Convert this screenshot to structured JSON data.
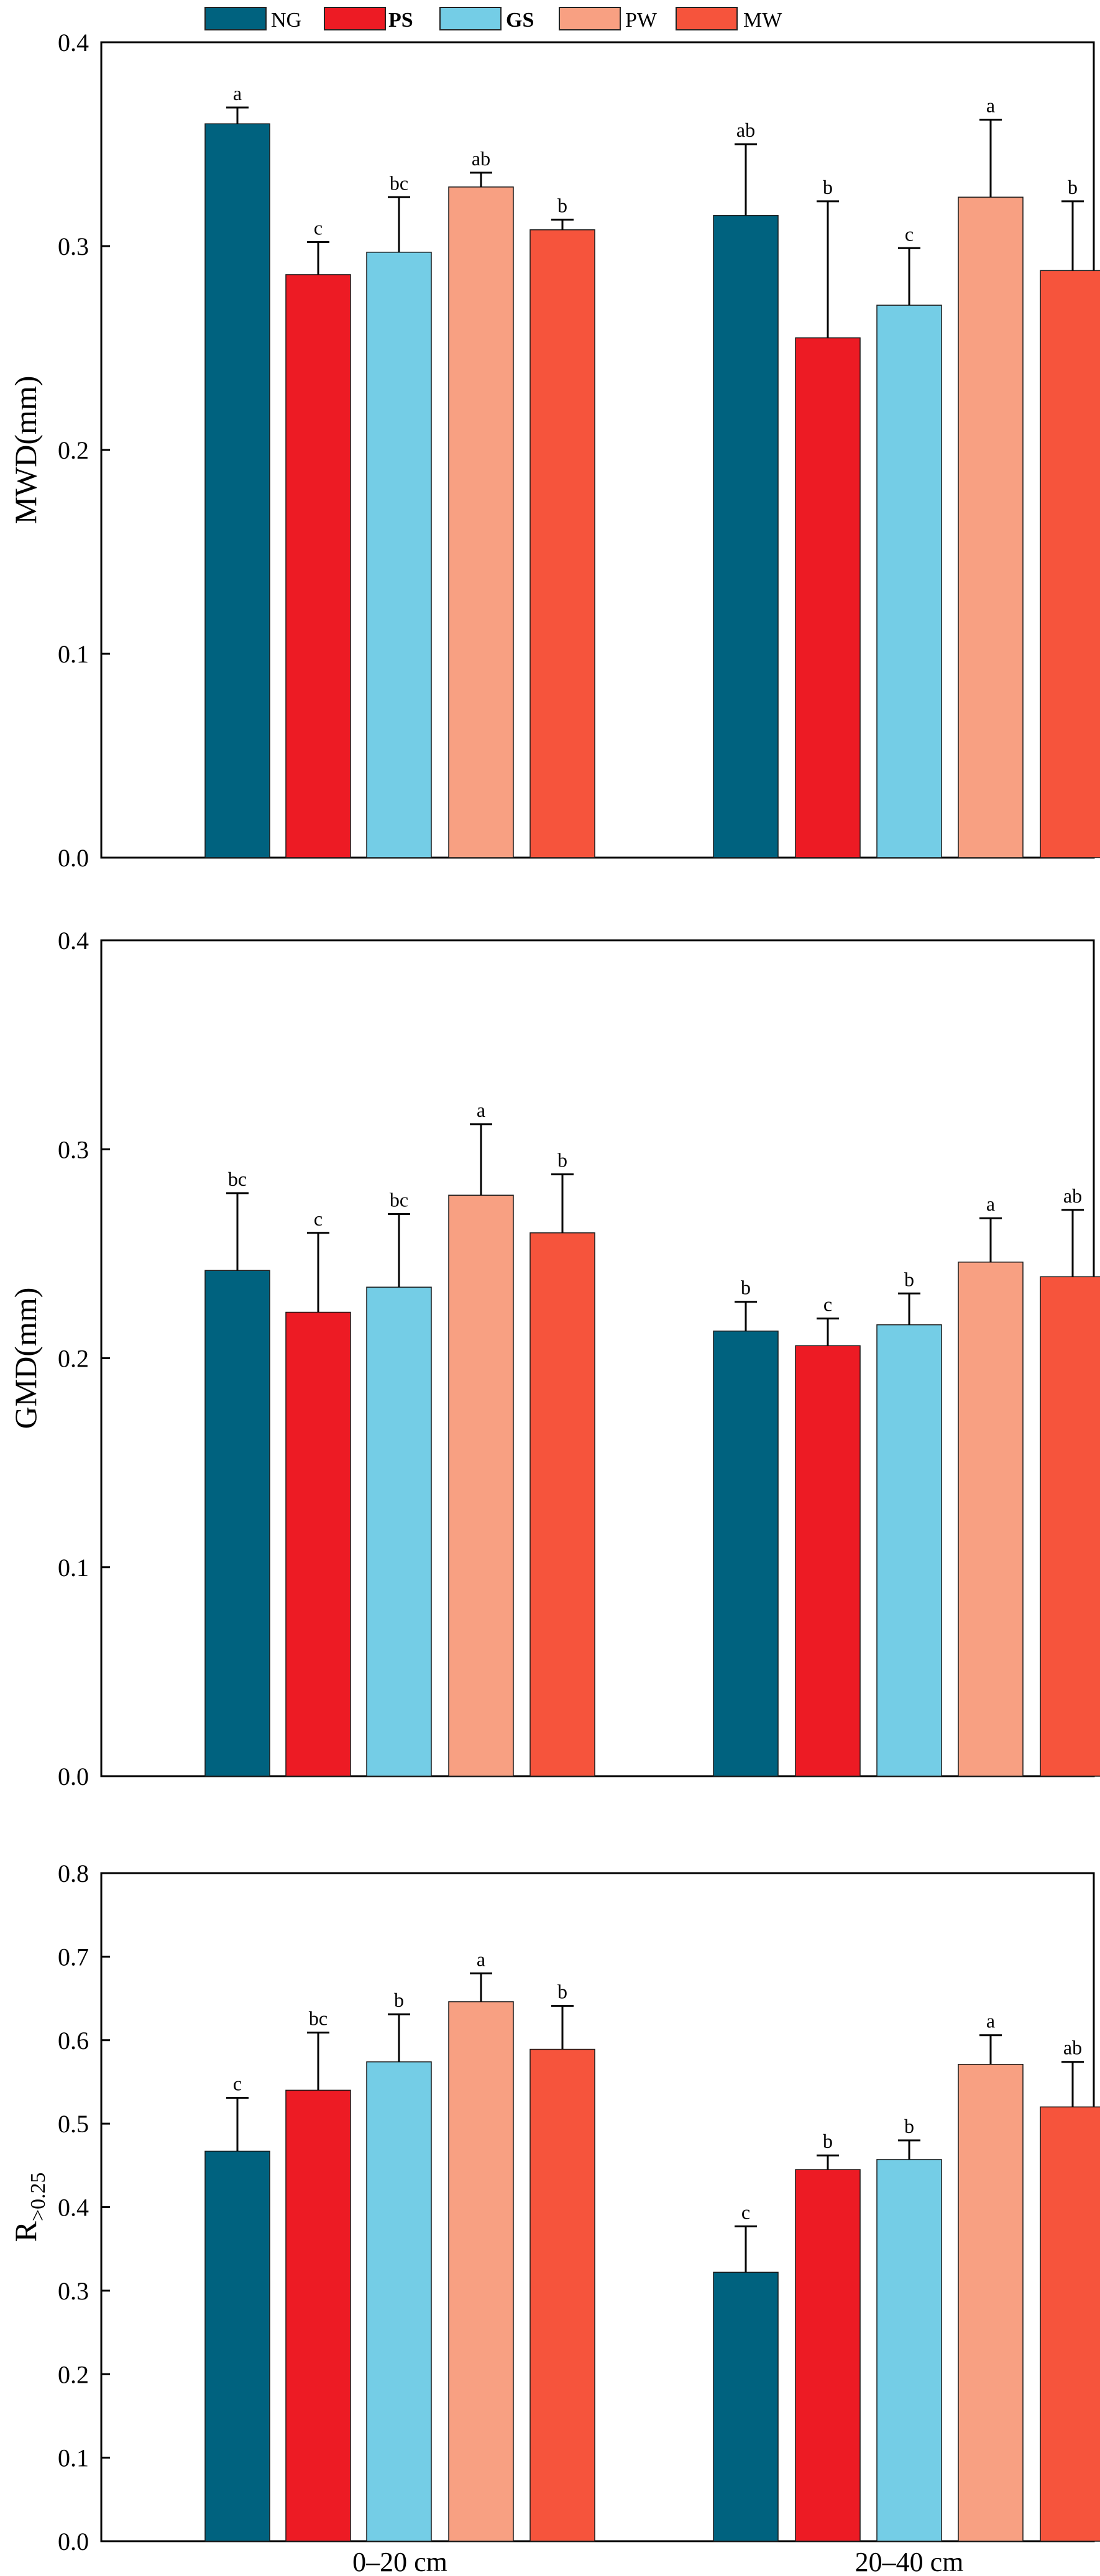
{
  "legend": [
    {
      "label": "NG",
      "bold": false
    },
    {
      "label": "PS",
      "bold": true
    },
    {
      "label": "GS",
      "bold": true
    },
    {
      "label": "PW",
      "bold": false
    },
    {
      "label": "MW",
      "bold": false
    }
  ],
  "colors": {
    "NG": "#00627F",
    "PS": "#ED1B24",
    "GS": "#74CDE6",
    "PW": "#F8A082",
    "MW": "#F6543C"
  },
  "chart_data": [
    {
      "type": "bar",
      "title": "",
      "ylabel": "MWD(mm)",
      "xlabel": "",
      "ylim": [
        0.0,
        0.4
      ],
      "yticks": [
        "0.0",
        "0.1",
        "0.2",
        "0.3",
        "0.4"
      ],
      "categories": [
        "0–20 cm",
        "20–40 cm"
      ],
      "show_category_labels": false,
      "series": [
        {
          "name": "NG",
          "values": [
            0.36,
            0.315
          ],
          "errors": [
            0.008,
            0.035
          ],
          "letters": [
            "a",
            "ab"
          ]
        },
        {
          "name": "PS",
          "values": [
            0.286,
            0.255
          ],
          "errors": [
            0.016,
            0.067
          ],
          "letters": [
            "c",
            "b"
          ]
        },
        {
          "name": "GS",
          "values": [
            0.297,
            0.271
          ],
          "errors": [
            0.027,
            0.028
          ],
          "letters": [
            "bc",
            "c"
          ]
        },
        {
          "name": "PW",
          "values": [
            0.329,
            0.324
          ],
          "errors": [
            0.007,
            0.038
          ],
          "letters": [
            "ab",
            "a"
          ]
        },
        {
          "name": "MW",
          "values": [
            0.308,
            0.288
          ],
          "errors": [
            0.005,
            0.034
          ],
          "letters": [
            "b",
            "b"
          ]
        }
      ]
    },
    {
      "type": "bar",
      "title": "",
      "ylabel": "GMD(mm)",
      "xlabel": "",
      "ylim": [
        0.0,
        0.4
      ],
      "yticks": [
        "0.0",
        "0.1",
        "0.2",
        "0.3",
        "0.4"
      ],
      "categories": [
        "0–20 cm",
        "20–40 cm"
      ],
      "show_category_labels": false,
      "series": [
        {
          "name": "NG",
          "values": [
            0.242,
            0.213
          ],
          "errors": [
            0.037,
            0.014
          ],
          "letters": [
            "bc",
            "b"
          ]
        },
        {
          "name": "PS",
          "values": [
            0.222,
            0.206
          ],
          "errors": [
            0.038,
            0.013
          ],
          "letters": [
            "c",
            "c"
          ]
        },
        {
          "name": "GS",
          "values": [
            0.234,
            0.216
          ],
          "errors": [
            0.035,
            0.015
          ],
          "letters": [
            "bc",
            "b"
          ]
        },
        {
          "name": "PW",
          "values": [
            0.278,
            0.246
          ],
          "errors": [
            0.034,
            0.021
          ],
          "letters": [
            "a",
            "a"
          ]
        },
        {
          "name": "MW",
          "values": [
            0.26,
            0.239
          ],
          "errors": [
            0.028,
            0.032
          ],
          "letters": [
            "b",
            "ab"
          ]
        }
      ]
    },
    {
      "type": "bar",
      "title": "",
      "ylabel": "R",
      "ylabel_sub": ">0.25",
      "xlabel": "",
      "ylim": [
        0.0,
        0.8
      ],
      "yticks": [
        "0.0",
        "0.1",
        "0.2",
        "0.3",
        "0.4",
        "0.5",
        "0.6",
        "0.7",
        "0.8"
      ],
      "categories": [
        "0–20 cm",
        "20–40 cm"
      ],
      "show_category_labels": true,
      "series": [
        {
          "name": "NG",
          "values": [
            0.467,
            0.322
          ],
          "errors": [
            0.064,
            0.055
          ],
          "letters": [
            "c",
            "c"
          ]
        },
        {
          "name": "PS",
          "values": [
            0.54,
            0.445
          ],
          "errors": [
            0.069,
            0.017
          ],
          "letters": [
            "bc",
            "b"
          ]
        },
        {
          "name": "GS",
          "values": [
            0.574,
            0.457
          ],
          "errors": [
            0.057,
            0.023
          ],
          "letters": [
            "b",
            "b"
          ]
        },
        {
          "name": "PW",
          "values": [
            0.646,
            0.571
          ],
          "errors": [
            0.034,
            0.035
          ],
          "letters": [
            "a",
            "a"
          ]
        },
        {
          "name": "MW",
          "values": [
            0.589,
            0.52
          ],
          "errors": [
            0.052,
            0.054
          ],
          "letters": [
            "b",
            "ab"
          ]
        }
      ]
    }
  ]
}
